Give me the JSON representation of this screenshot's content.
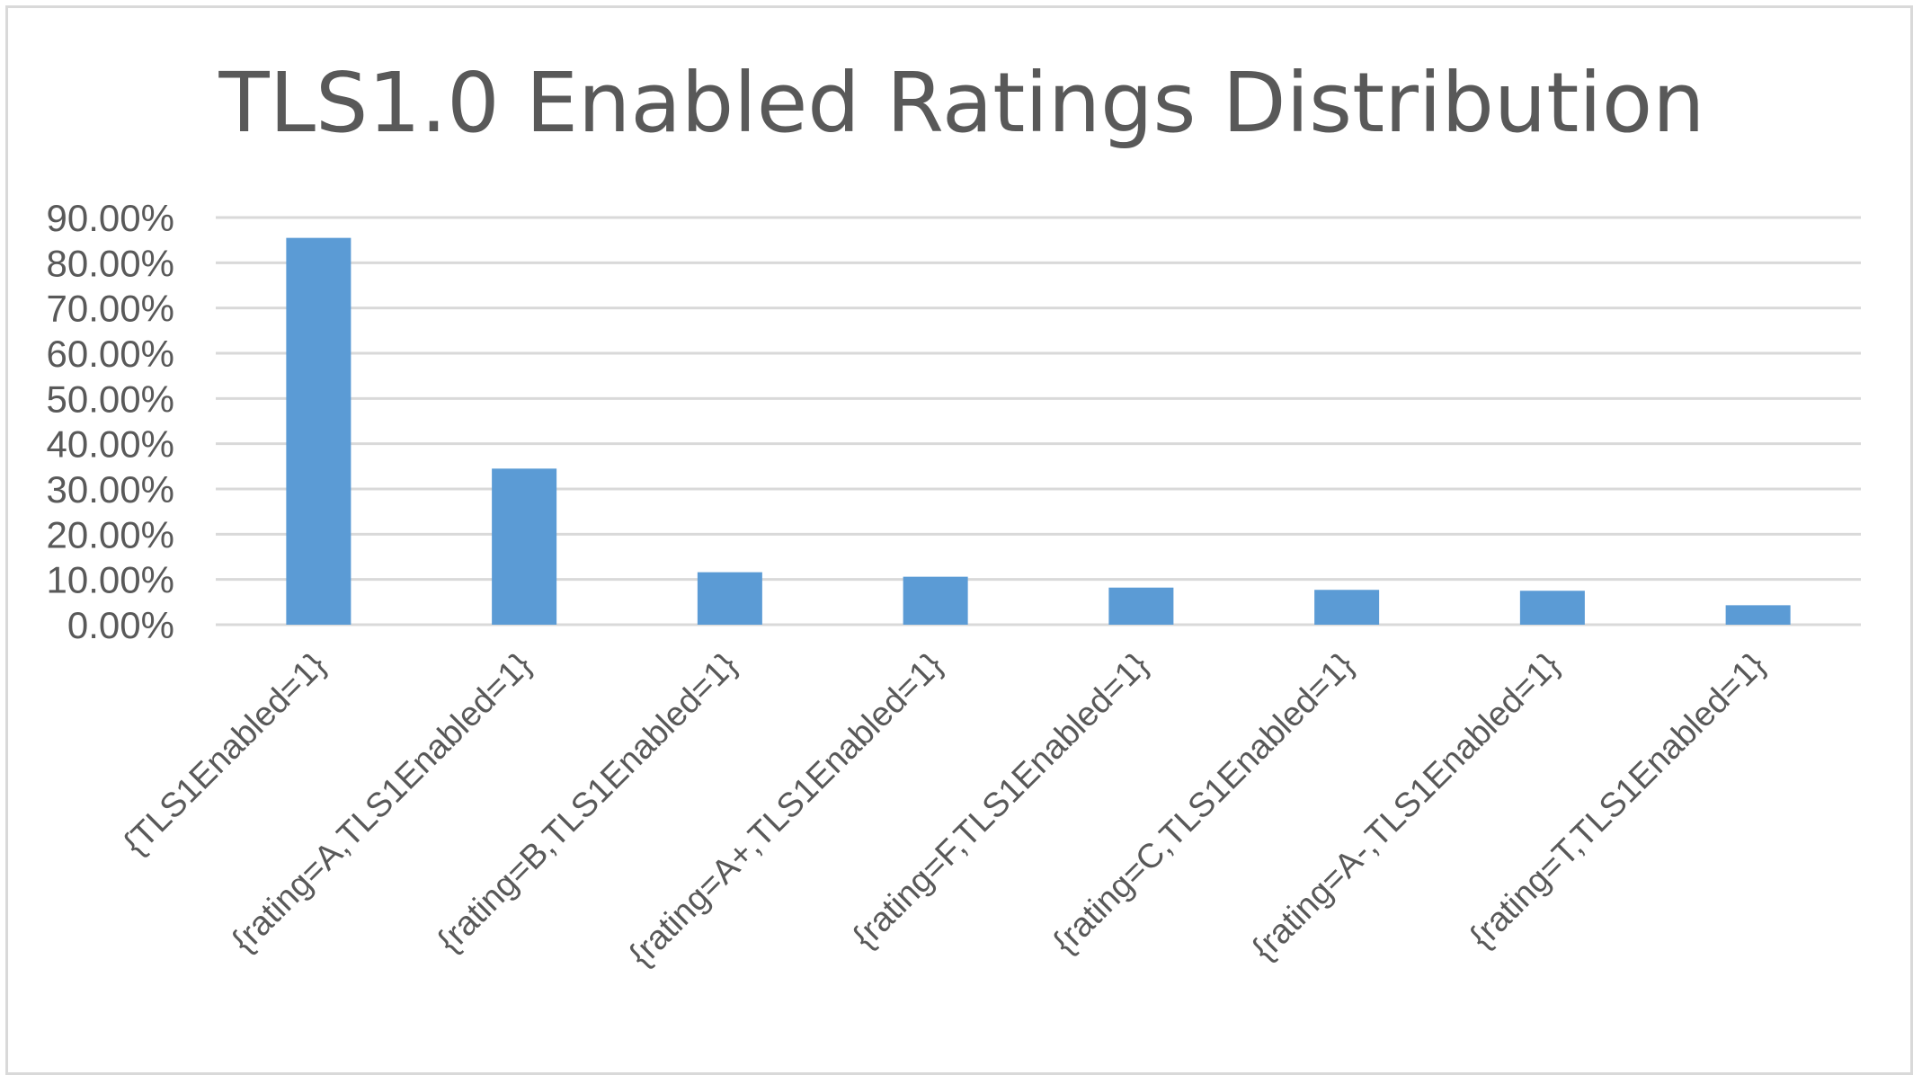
{
  "chart_data": {
    "type": "bar",
    "title": "TLS1.0 Enabled Ratings Distribution",
    "xlabel": "",
    "ylabel": "",
    "categories": [
      "{TLS1Enabled=1}",
      "{rating=A,TLS1Enabled=1}",
      "{rating=B,TLS1Enabled=1}",
      "{rating=A+,TLS1Enabled=1}",
      "{rating=F,TLS1Enabled=1}",
      "{rating=C,TLS1Enabled=1}",
      "{rating=A-,TLS1Enabled=1}",
      "{rating=T,TLS1Enabled=1}"
    ],
    "values": [
      85.5,
      34.5,
      11.6,
      10.6,
      8.2,
      7.7,
      7.5,
      4.3
    ],
    "ylim": [
      0,
      90
    ],
    "yticks": [
      {
        "value": 0,
        "label": "0.00%"
      },
      {
        "value": 10,
        "label": "10.00%"
      },
      {
        "value": 20,
        "label": "20.00%"
      },
      {
        "value": 30,
        "label": "30.00%"
      },
      {
        "value": 40,
        "label": "40.00%"
      },
      {
        "value": 50,
        "label": "50.00%"
      },
      {
        "value": 60,
        "label": "60.00%"
      },
      {
        "value": 70,
        "label": "70.00%"
      },
      {
        "value": 80,
        "label": "80.00%"
      },
      {
        "value": 90,
        "label": "90.00%"
      }
    ],
    "grid": true,
    "legend": "none",
    "colors": {
      "bar": "#5b9bd5",
      "grid": "#d9d9d9",
      "text": "#595959"
    }
  }
}
